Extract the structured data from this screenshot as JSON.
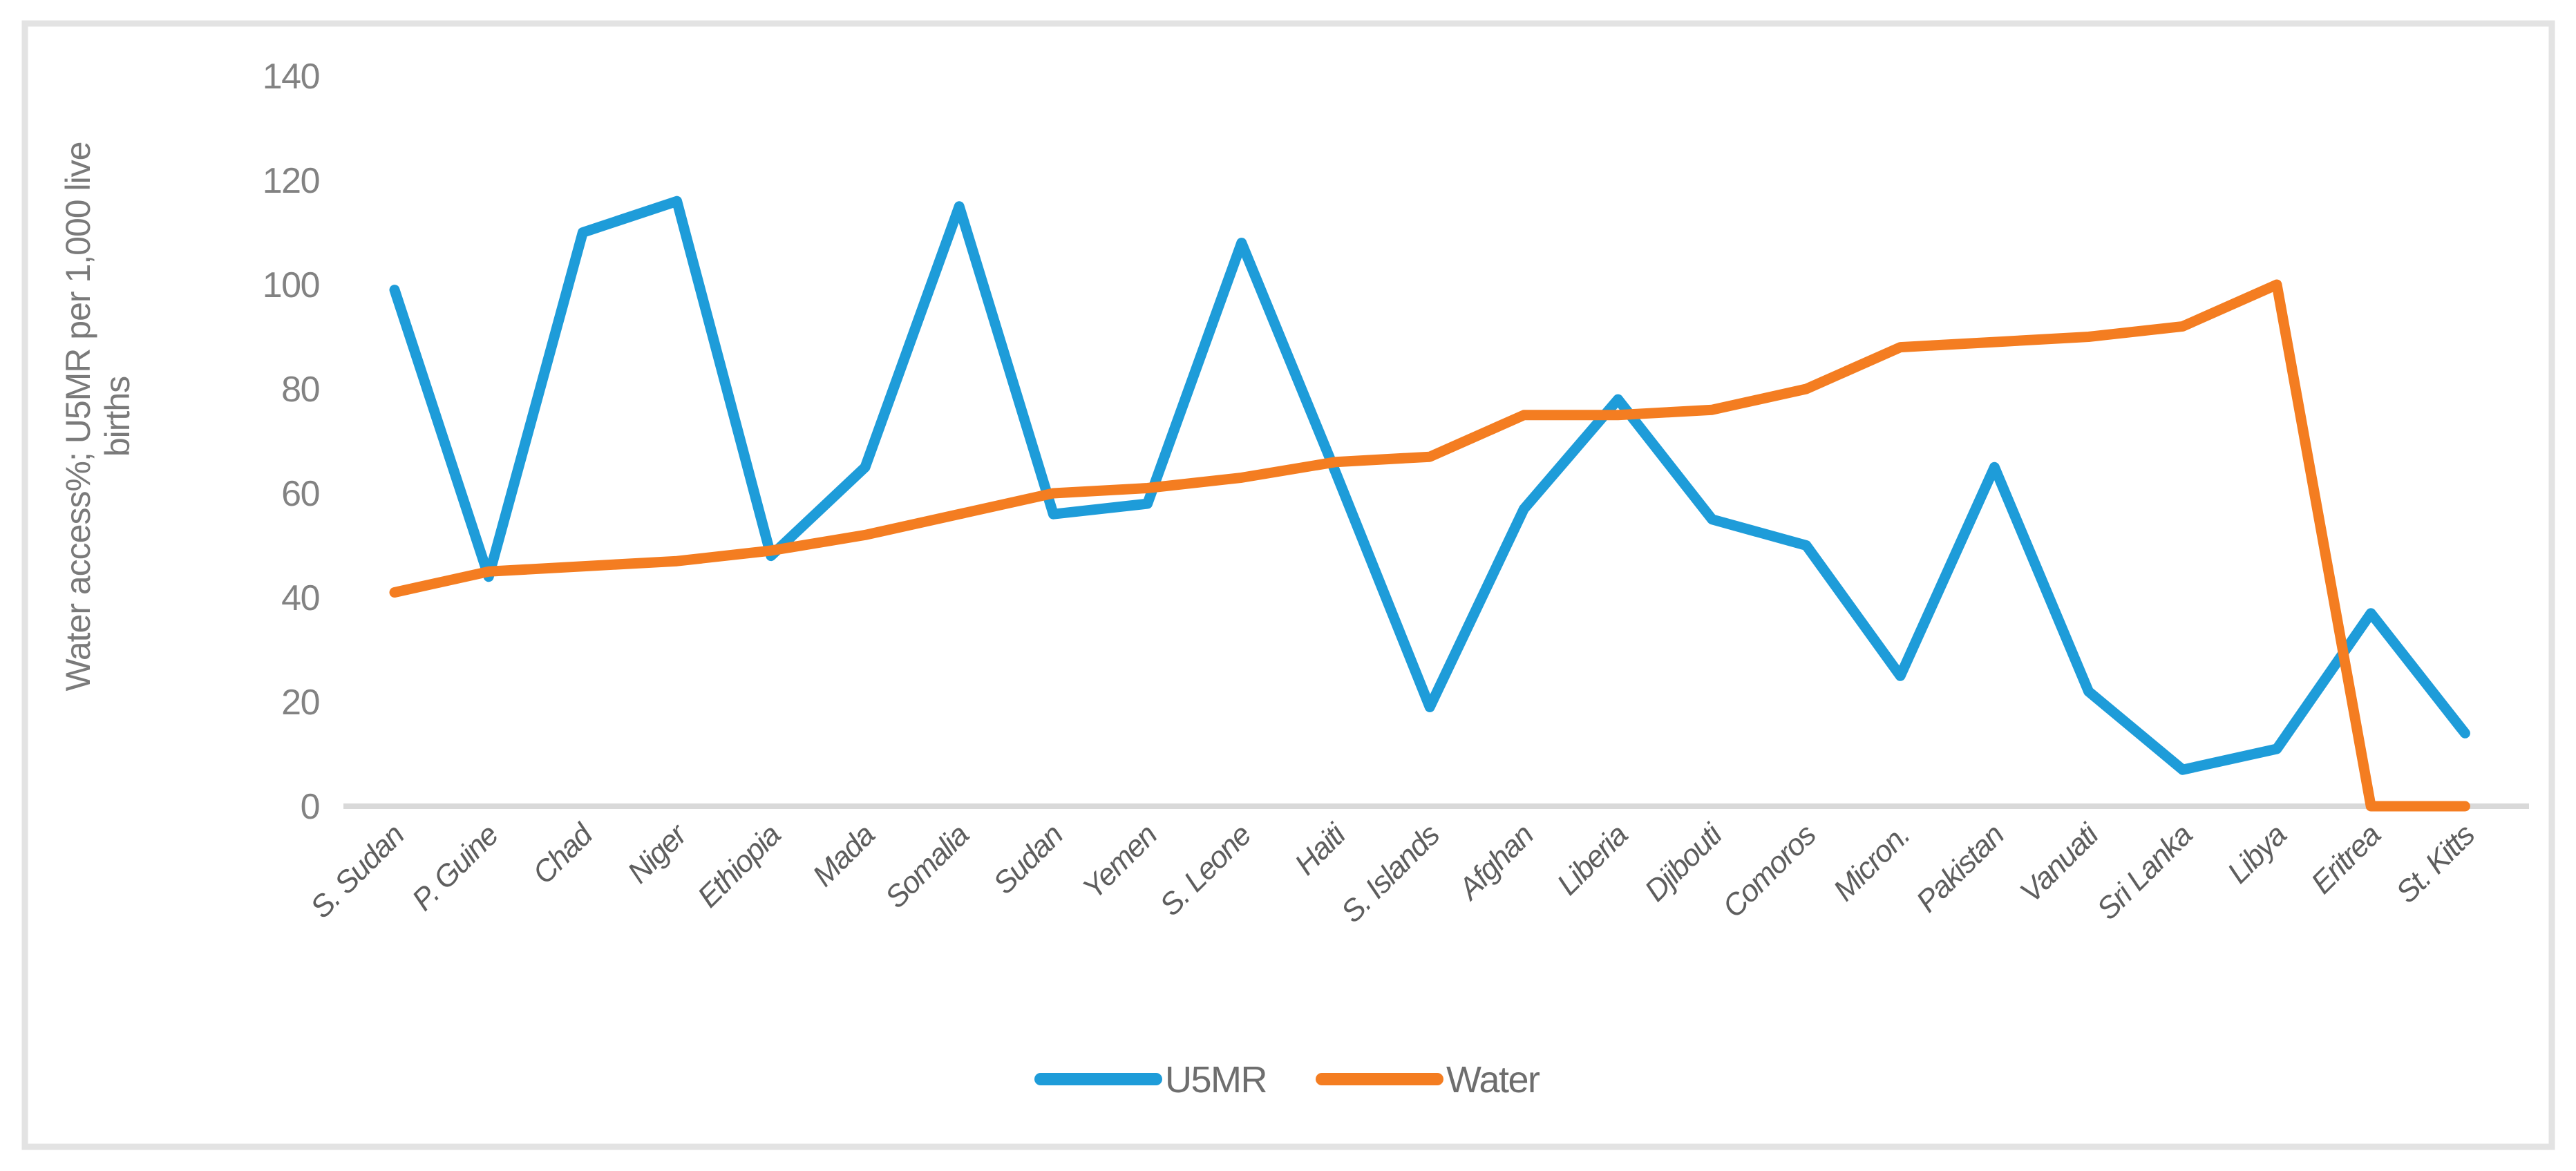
{
  "figure": {
    "background": "#ffffff",
    "border_color": "#e3e3e3"
  },
  "y_axis": {
    "title_line1": "Water access%; U5MR per 1,000 live",
    "title_line2": "births",
    "ticks": [
      "0",
      "20",
      "40",
      "60",
      "80",
      "100",
      "120",
      "140"
    ],
    "min": 0,
    "max": 140,
    "step": 20,
    "text_color": "#828282",
    "axis_line_color": "#d9d9d9"
  },
  "x_axis": {
    "text_color": "#5e5e5e"
  },
  "legend": {
    "position": "bottom",
    "text_color": "#6e6e6e",
    "items": [
      {
        "label": "U5MR",
        "color": "#1E9CD9"
      },
      {
        "label": "Water",
        "color": "#F47D21"
      }
    ]
  },
  "chart_data": {
    "type": "line",
    "title": "",
    "xlabel": "",
    "ylabel": "Water access%; U5MR per 1,000 live births",
    "ylim": [
      0,
      140
    ],
    "grid": false,
    "legend_position": "bottom",
    "categories": [
      "S. Sudan",
      "P. Guine",
      "Chad",
      "Niger",
      "Ethiopia",
      "Mada",
      "Somalia",
      "Sudan",
      "Yemen",
      "S. Leone",
      "Haiti",
      "S. Islands",
      "Afghan",
      "Liberia",
      "Djibouti",
      "Comoros",
      "Micron.",
      "Pakistan",
      "Vanuati",
      "Sri Lanka",
      "Libya",
      "Eritrea",
      "St. Kitts"
    ],
    "series": [
      {
        "name": "U5MR",
        "color": "#1E9CD9",
        "values": [
          99,
          44,
          110,
          116,
          48,
          65,
          115,
          56,
          58,
          108,
          64,
          19,
          57,
          78,
          55,
          50,
          25,
          65,
          22,
          7,
          11,
          37,
          14
        ]
      },
      {
        "name": "Water",
        "color": "#F47D21",
        "values": [
          41,
          45,
          46,
          47,
          49,
          52,
          56,
          60,
          61,
          63,
          66,
          67,
          75,
          75,
          76,
          80,
          88,
          89,
          90,
          92,
          100,
          0,
          0
        ]
      }
    ]
  }
}
